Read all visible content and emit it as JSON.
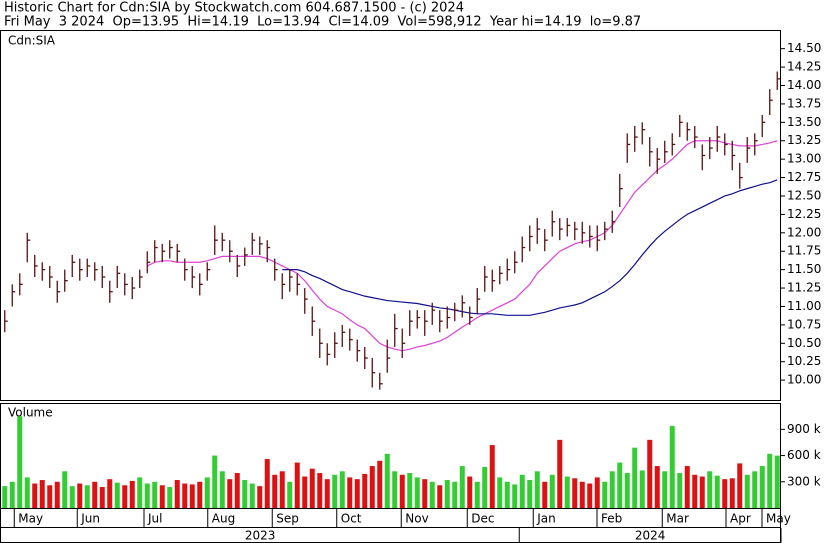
{
  "header": {
    "title": "Historic Chart for Cdn:SIA by Stockwatch.com 604.687.1500 - (c) 2024",
    "quote": "Fri May  3 2024  Op=13.95  Hi=14.19  Lo=13.94  Cl=14.09  Vol=598,912  Year hi=14.19  lo=9.87"
  },
  "chart_data": {
    "type": "ohlc",
    "symbol": "Cdn:SIA",
    "bar_color": "#5a1010",
    "xlim": [
      -0.5,
      103.5
    ],
    "xticks": [
      {
        "value": 1.8,
        "label": "May"
      },
      {
        "value": 10.2,
        "label": "Jun"
      },
      {
        "value": 19.1,
        "label": "Jul"
      },
      {
        "value": 27.6,
        "label": "Aug"
      },
      {
        "value": 36.2,
        "label": "Sep"
      },
      {
        "value": 44.8,
        "label": "Oct"
      },
      {
        "value": 53.4,
        "label": "Nov"
      },
      {
        "value": 62.2,
        "label": "Dec"
      },
      {
        "value": 71,
        "label": "Jan"
      },
      {
        "value": 79.5,
        "label": "Feb"
      },
      {
        "value": 88.2,
        "label": "Mar"
      },
      {
        "value": 96.7,
        "label": "Apr"
      },
      {
        "value": 101.5,
        "label": "May"
      }
    ],
    "years": [
      {
        "year": 2023,
        "span": [
          -0.5,
          68.6
        ]
      },
      {
        "year": 2024,
        "span": [
          68.6,
          103.5
        ]
      }
    ],
    "ylim": [
      9.73,
      14.74
    ],
    "yticks": [
      {
        "value": 10,
        "label": "10.00"
      },
      {
        "value": 10.25,
        "label": "10.25"
      },
      {
        "value": 10.5,
        "label": "10.50"
      },
      {
        "value": 10.75,
        "label": "10.75"
      },
      {
        "value": 11,
        "label": "11.00"
      },
      {
        "value": 11.25,
        "label": "11.25"
      },
      {
        "value": 11.5,
        "label": "11.50"
      },
      {
        "value": 11.75,
        "label": "11.75"
      },
      {
        "value": 12,
        "label": "12.00"
      },
      {
        "value": 12.25,
        "label": "12.25"
      },
      {
        "value": 12.5,
        "label": "12.50"
      },
      {
        "value": 12.75,
        "label": "12.75"
      },
      {
        "value": 13,
        "label": "13.00"
      },
      {
        "value": 13.25,
        "label": "13.25"
      },
      {
        "value": 13.5,
        "label": "13.50"
      },
      {
        "value": 13.75,
        "label": "13.75"
      },
      {
        "value": 14,
        "label": "14.00"
      },
      {
        "value": 14.25,
        "label": "14.25"
      },
      {
        "value": 14.5,
        "label": "14.50"
      }
    ],
    "high": [
      10.95,
      11.3,
      11.45,
      12.0,
      11.7,
      11.6,
      11.55,
      11.35,
      11.5,
      11.7,
      11.65,
      11.65,
      11.6,
      11.55,
      11.35,
      11.55,
      11.45,
      11.4,
      11.5,
      11.75,
      11.9,
      11.85,
      11.9,
      11.85,
      11.65,
      11.55,
      11.45,
      11.6,
      12.1,
      12.0,
      11.9,
      11.7,
      11.8,
      12.0,
      11.95,
      11.9,
      11.65,
      11.45,
      11.5,
      11.45,
      11.25,
      11.0,
      10.7,
      10.5,
      10.65,
      10.75,
      10.7,
      10.55,
      10.45,
      10.3,
      10.1,
      10.55,
      10.9,
      10.7,
      10.95,
      10.95,
      10.95,
      11.05,
      10.95,
      11.0,
      11.05,
      11.15,
      11.0,
      11.25,
      11.55,
      11.5,
      11.55,
      11.65,
      11.75,
      11.95,
      12.1,
      12.2,
      12.05,
      12.3,
      12.2,
      12.2,
      12.15,
      12.15,
      12.1,
      12.1,
      12.15,
      12.3,
      12.8,
      13.35,
      13.45,
      13.5,
      13.3,
      13.15,
      13.25,
      13.35,
      13.6,
      13.5,
      13.45,
      13.2,
      13.3,
      13.45,
      13.35,
      13.25,
      12.95,
      13.3,
      13.35,
      13.6,
      13.95,
      14.19
    ],
    "low": [
      10.65,
      11.0,
      11.15,
      11.6,
      11.4,
      11.35,
      11.25,
      11.05,
      11.2,
      11.4,
      11.35,
      11.4,
      11.35,
      11.25,
      11.05,
      11.25,
      11.15,
      11.1,
      11.25,
      11.45,
      11.6,
      11.6,
      11.65,
      11.6,
      11.35,
      11.25,
      11.15,
      11.35,
      11.7,
      11.75,
      11.6,
      11.4,
      11.55,
      11.7,
      11.7,
      11.6,
      11.35,
      11.1,
      11.2,
      11.15,
      10.9,
      10.6,
      10.3,
      10.2,
      10.3,
      10.45,
      10.4,
      10.25,
      10.15,
      9.9,
      9.87,
      10.1,
      10.45,
      10.3,
      10.6,
      10.7,
      10.6,
      10.75,
      10.65,
      10.7,
      10.8,
      10.85,
      10.75,
      10.9,
      11.2,
      11.2,
      11.3,
      11.35,
      11.45,
      11.6,
      11.75,
      11.85,
      11.75,
      11.95,
      11.9,
      11.95,
      11.9,
      11.85,
      11.8,
      11.75,
      11.9,
      12.0,
      12.35,
      12.95,
      13.1,
      13.2,
      12.9,
      12.8,
      12.95,
      13.05,
      13.3,
      13.25,
      13.15,
      12.85,
      13.0,
      13.1,
      13.05,
      12.85,
      12.6,
      12.95,
      13.05,
      13.3,
      13.6,
      13.94
    ],
    "close": [
      10.8,
      11.2,
      11.3,
      11.9,
      11.55,
      11.5,
      11.4,
      11.2,
      11.35,
      11.6,
      11.5,
      11.55,
      11.5,
      11.4,
      11.2,
      11.45,
      11.3,
      11.25,
      11.4,
      11.6,
      11.8,
      11.75,
      11.8,
      11.75,
      11.5,
      11.4,
      11.3,
      11.5,
      11.9,
      11.9,
      11.75,
      11.55,
      11.7,
      11.9,
      11.85,
      11.8,
      11.5,
      11.3,
      11.4,
      11.3,
      11.1,
      10.8,
      10.5,
      10.35,
      10.5,
      10.65,
      10.55,
      10.4,
      10.3,
      10.1,
      9.95,
      10.3,
      10.7,
      10.5,
      10.8,
      10.85,
      10.8,
      10.95,
      10.8,
      10.85,
      10.95,
      11.05,
      10.85,
      11.1,
      11.4,
      11.35,
      11.45,
      11.5,
      11.6,
      11.8,
      11.95,
      12.05,
      11.9,
      12.15,
      12.05,
      12.1,
      12.05,
      12.0,
      11.95,
      11.9,
      12.05,
      12.15,
      12.6,
      13.2,
      13.3,
      13.4,
      13.1,
      13.0,
      13.1,
      13.2,
      13.5,
      13.4,
      13.3,
      13.05,
      13.15,
      13.3,
      13.2,
      13.05,
      12.75,
      13.15,
      13.25,
      13.5,
      13.8,
      14.09
    ],
    "series": [
      {
        "color": "#e040d8",
        "values": [
          null,
          null,
          null,
          null,
          null,
          null,
          null,
          null,
          null,
          null,
          null,
          null,
          null,
          null,
          null,
          null,
          null,
          null,
          null,
          11.55,
          11.6,
          11.62,
          11.62,
          11.6,
          11.6,
          11.6,
          11.6,
          11.62,
          11.65,
          11.68,
          11.68,
          11.68,
          11.68,
          11.68,
          11.68,
          11.65,
          11.6,
          11.55,
          11.5,
          11.45,
          11.35,
          11.22,
          11.1,
          11.0,
          10.95,
          10.9,
          10.82,
          10.75,
          10.7,
          10.6,
          10.5,
          10.45,
          10.42,
          10.4,
          10.42,
          10.45,
          10.47,
          10.5,
          10.53,
          10.58,
          10.65,
          10.72,
          10.78,
          10.85,
          10.9,
          10.95,
          11.0,
          11.05,
          11.1,
          11.2,
          11.3,
          11.45,
          11.55,
          11.65,
          11.75,
          11.8,
          11.85,
          11.88,
          11.9,
          11.95,
          12.0,
          12.1,
          12.25,
          12.4,
          12.55,
          12.65,
          12.75,
          12.85,
          12.92,
          13.0,
          13.1,
          13.2,
          13.25,
          13.25,
          13.25,
          13.25,
          13.22,
          13.2,
          13.18,
          13.18,
          13.18,
          13.2,
          13.22,
          13.25
        ]
      },
      {
        "color": "#101090",
        "values": [
          null,
          null,
          null,
          null,
          null,
          null,
          null,
          null,
          null,
          null,
          null,
          null,
          null,
          null,
          null,
          null,
          null,
          null,
          null,
          null,
          null,
          null,
          null,
          null,
          null,
          null,
          null,
          null,
          null,
          null,
          null,
          null,
          null,
          null,
          null,
          null,
          null,
          11.5,
          11.5,
          11.5,
          11.47,
          11.42,
          11.38,
          11.33,
          11.28,
          11.23,
          11.2,
          11.17,
          11.14,
          11.12,
          11.1,
          11.08,
          11.07,
          11.06,
          11.05,
          11.04,
          11.02,
          11.0,
          10.98,
          10.97,
          10.95,
          10.93,
          10.91,
          10.9,
          10.9,
          10.9,
          10.89,
          10.88,
          10.88,
          10.88,
          10.88,
          10.9,
          10.92,
          10.95,
          10.98,
          11.0,
          11.02,
          11.05,
          11.1,
          11.15,
          11.2,
          11.27,
          11.35,
          11.45,
          11.57,
          11.7,
          11.82,
          11.93,
          12.02,
          12.1,
          12.18,
          12.25,
          12.3,
          12.35,
          12.4,
          12.45,
          12.5,
          12.53,
          12.57,
          12.6,
          12.63,
          12.66,
          12.68,
          12.72
        ]
      }
    ],
    "volume": {
      "title": "Volume",
      "up_color": "#33cc33",
      "down_color": "#dd1111",
      "ylim": [
        0,
        1190000
      ],
      "yticks": [
        {
          "value": 300000,
          "label": "300 k"
        },
        {
          "value": 600000,
          "label": "600 k"
        },
        {
          "value": 900000,
          "label": "900 k"
        }
      ],
      "values": [
        250000,
        300000,
        1050000,
        350000,
        280000,
        320000,
        260000,
        300000,
        420000,
        250000,
        280000,
        260000,
        300000,
        240000,
        330000,
        290000,
        260000,
        310000,
        350000,
        280000,
        300000,
        260000,
        240000,
        320000,
        280000,
        270000,
        300000,
        350000,
        600000,
        420000,
        330000,
        400000,
        320000,
        280000,
        250000,
        560000,
        380000,
        420000,
        300000,
        520000,
        360000,
        450000,
        400000,
        330000,
        380000,
        420000,
        350000,
        330000,
        390000,
        480000,
        540000,
        620000,
        420000,
        380000,
        400000,
        350000,
        330000,
        300000,
        260000,
        320000,
        300000,
        480000,
        360000,
        300000,
        470000,
        720000,
        350000,
        300000,
        270000,
        380000,
        320000,
        420000,
        300000,
        380000,
        780000,
        360000,
        340000,
        300000,
        280000,
        350000,
        300000,
        420000,
        520000,
        400000,
        690000,
        430000,
        780000,
        480000,
        420000,
        940000,
        400000,
        480000,
        380000,
        360000,
        420000,
        370000,
        330000,
        340000,
        510000,
        380000,
        420000,
        480000,
        620000,
        599000
      ]
    }
  }
}
